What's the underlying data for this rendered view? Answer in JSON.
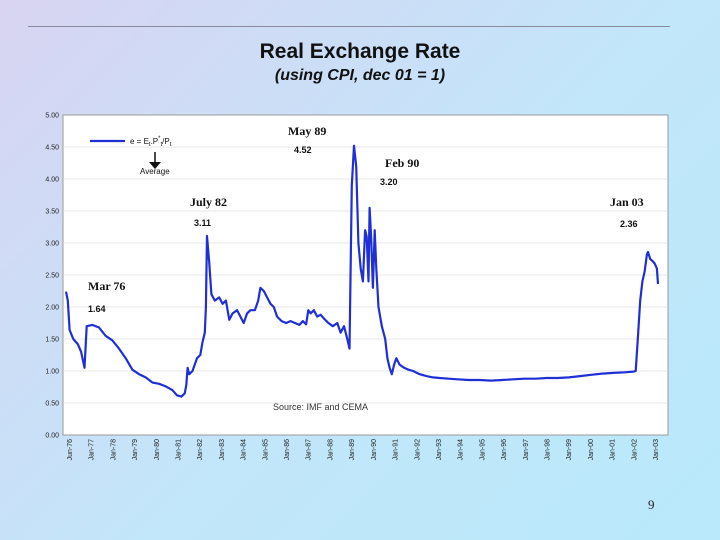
{
  "slide": {
    "number": "9"
  },
  "chart_data": {
    "type": "line",
    "title": "Real Exchange Rate",
    "subtitle": "(using CPI, dec 01 = 1)",
    "ylim": [
      0,
      5
    ],
    "yticks": [
      "0.00",
      "0.50",
      "1.00",
      "1.50",
      "2.00",
      "2.50",
      "3.00",
      "3.50",
      "4.00",
      "4.50",
      "5.00"
    ],
    "xticks": [
      "Jun-76",
      "Jan-77",
      "Jan-78",
      "Jan-79",
      "Jan-80",
      "Jan-81",
      "Jan-82",
      "Jan-83",
      "Jan-84",
      "Jan-85",
      "Jan-86",
      "Jan-87",
      "Jan-88",
      "Jan-89",
      "Jan-90",
      "Jan-91",
      "Jan-92",
      "Jan-93",
      "Jan-94",
      "Jan-95",
      "Jan-96",
      "Jan-97",
      "Jan-98",
      "Jan-99",
      "Jan-00",
      "Jan-01",
      "Jan-02",
      "Jan-03"
    ],
    "legend": {
      "formula": "e = E",
      "sub_t": "t",
      "mid": ".P",
      "sup": "*",
      "sub_t2": "t",
      "tail": "/P",
      "sub_t3": "t",
      "average_label": "Average"
    },
    "source": "Source: IMF and CEMA",
    "series": [
      {
        "name": "Real exchange rate",
        "color": "#1f2fd6",
        "points": [
          [
            1976.42,
            2.24
          ],
          [
            1976.5,
            2.1
          ],
          [
            1976.58,
            1.64
          ],
          [
            1976.75,
            1.5
          ],
          [
            1976.95,
            1.42
          ],
          [
            1977.1,
            1.3
          ],
          [
            1977.25,
            1.05
          ],
          [
            1977.35,
            1.7
          ],
          [
            1977.6,
            1.72
          ],
          [
            1977.9,
            1.68
          ],
          [
            1978.2,
            1.55
          ],
          [
            1978.5,
            1.48
          ],
          [
            1978.8,
            1.35
          ],
          [
            1979.1,
            1.2
          ],
          [
            1979.4,
            1.02
          ],
          [
            1979.7,
            0.95
          ],
          [
            1980.0,
            0.9
          ],
          [
            1980.3,
            0.82
          ],
          [
            1980.6,
            0.8
          ],
          [
            1980.9,
            0.76
          ],
          [
            1981.2,
            0.7
          ],
          [
            1981.4,
            0.62
          ],
          [
            1981.6,
            0.6
          ],
          [
            1981.75,
            0.65
          ],
          [
            1981.82,
            0.78
          ],
          [
            1981.88,
            1.05
          ],
          [
            1981.95,
            0.95
          ],
          [
            1982.1,
            1.0
          ],
          [
            1982.3,
            1.2
          ],
          [
            1982.45,
            1.25
          ],
          [
            1982.55,
            1.45
          ],
          [
            1982.65,
            1.6
          ],
          [
            1982.7,
            2.0
          ],
          [
            1982.75,
            3.11
          ],
          [
            1982.85,
            2.7
          ],
          [
            1982.95,
            2.2
          ],
          [
            1983.1,
            2.1
          ],
          [
            1983.3,
            2.15
          ],
          [
            1983.45,
            2.05
          ],
          [
            1983.6,
            2.1
          ],
          [
            1983.75,
            1.8
          ],
          [
            1983.9,
            1.9
          ],
          [
            1984.1,
            1.95
          ],
          [
            1984.25,
            1.85
          ],
          [
            1984.4,
            1.75
          ],
          [
            1984.55,
            1.9
          ],
          [
            1984.7,
            1.95
          ],
          [
            1984.9,
            1.95
          ],
          [
            1985.05,
            2.1
          ],
          [
            1985.15,
            2.3
          ],
          [
            1985.3,
            2.25
          ],
          [
            1985.45,
            2.15
          ],
          [
            1985.6,
            2.05
          ],
          [
            1985.75,
            2.0
          ],
          [
            1985.9,
            1.85
          ],
          [
            1986.1,
            1.78
          ],
          [
            1986.3,
            1.75
          ],
          [
            1986.5,
            1.78
          ],
          [
            1986.7,
            1.75
          ],
          [
            1986.9,
            1.72
          ],
          [
            1987.05,
            1.78
          ],
          [
            1987.2,
            1.73
          ],
          [
            1987.3,
            1.95
          ],
          [
            1987.4,
            1.9
          ],
          [
            1987.55,
            1.95
          ],
          [
            1987.7,
            1.85
          ],
          [
            1987.85,
            1.88
          ],
          [
            1988.0,
            1.82
          ],
          [
            1988.2,
            1.75
          ],
          [
            1988.4,
            1.7
          ],
          [
            1988.6,
            1.75
          ],
          [
            1988.75,
            1.6
          ],
          [
            1988.9,
            1.7
          ],
          [
            1989.05,
            1.5
          ],
          [
            1989.15,
            1.35
          ],
          [
            1989.25,
            3.9
          ],
          [
            1989.35,
            4.52
          ],
          [
            1989.45,
            4.2
          ],
          [
            1989.55,
            3.0
          ],
          [
            1989.65,
            2.6
          ],
          [
            1989.75,
            2.4
          ],
          [
            1989.85,
            3.2
          ],
          [
            1989.92,
            3.1
          ],
          [
            1990.0,
            2.4
          ],
          [
            1990.05,
            3.55
          ],
          [
            1990.12,
            3.1
          ],
          [
            1990.2,
            2.3
          ],
          [
            1990.28,
            3.2
          ],
          [
            1990.35,
            2.6
          ],
          [
            1990.45,
            2.0
          ],
          [
            1990.6,
            1.7
          ],
          [
            1990.75,
            1.5
          ],
          [
            1990.85,
            1.2
          ],
          [
            1990.95,
            1.05
          ],
          [
            1991.05,
            0.95
          ],
          [
            1991.15,
            1.1
          ],
          [
            1991.25,
            1.2
          ],
          [
            1991.4,
            1.1
          ],
          [
            1991.6,
            1.05
          ],
          [
            1991.8,
            1.02
          ],
          [
            1992.0,
            1.0
          ],
          [
            1992.3,
            0.95
          ],
          [
            1992.6,
            0.92
          ],
          [
            1992.9,
            0.9
          ],
          [
            1993.2,
            0.89
          ],
          [
            1993.6,
            0.88
          ],
          [
            1994.0,
            0.87
          ],
          [
            1994.5,
            0.86
          ],
          [
            1995.0,
            0.86
          ],
          [
            1995.5,
            0.85
          ],
          [
            1996.0,
            0.86
          ],
          [
            1996.5,
            0.87
          ],
          [
            1997.0,
            0.88
          ],
          [
            1997.5,
            0.88
          ],
          [
            1998.0,
            0.89
          ],
          [
            1998.5,
            0.89
          ],
          [
            1999.0,
            0.9
          ],
          [
            1999.5,
            0.92
          ],
          [
            2000.0,
            0.94
          ],
          [
            2000.5,
            0.96
          ],
          [
            2001.0,
            0.97
          ],
          [
            2001.5,
            0.98
          ],
          [
            2001.9,
            0.99
          ],
          [
            2002.0,
            1.0
          ],
          [
            2002.1,
            1.55
          ],
          [
            2002.2,
            2.1
          ],
          [
            2002.3,
            2.4
          ],
          [
            2002.4,
            2.55
          ],
          [
            2002.5,
            2.82
          ],
          [
            2002.55,
            2.86
          ],
          [
            2002.65,
            2.75
          ],
          [
            2002.75,
            2.72
          ],
          [
            2002.85,
            2.68
          ],
          [
            2002.95,
            2.6
          ],
          [
            2003.0,
            2.36
          ]
        ]
      }
    ],
    "annotations": [
      {
        "label": "Mar 76",
        "value": "1.64"
      },
      {
        "label": "July 82",
        "value": "3.11"
      },
      {
        "label": "May 89",
        "value": "4.52"
      },
      {
        "label": "Feb 90",
        "value": "3.20"
      },
      {
        "label": "Jan 03",
        "value": "2.36"
      }
    ]
  }
}
